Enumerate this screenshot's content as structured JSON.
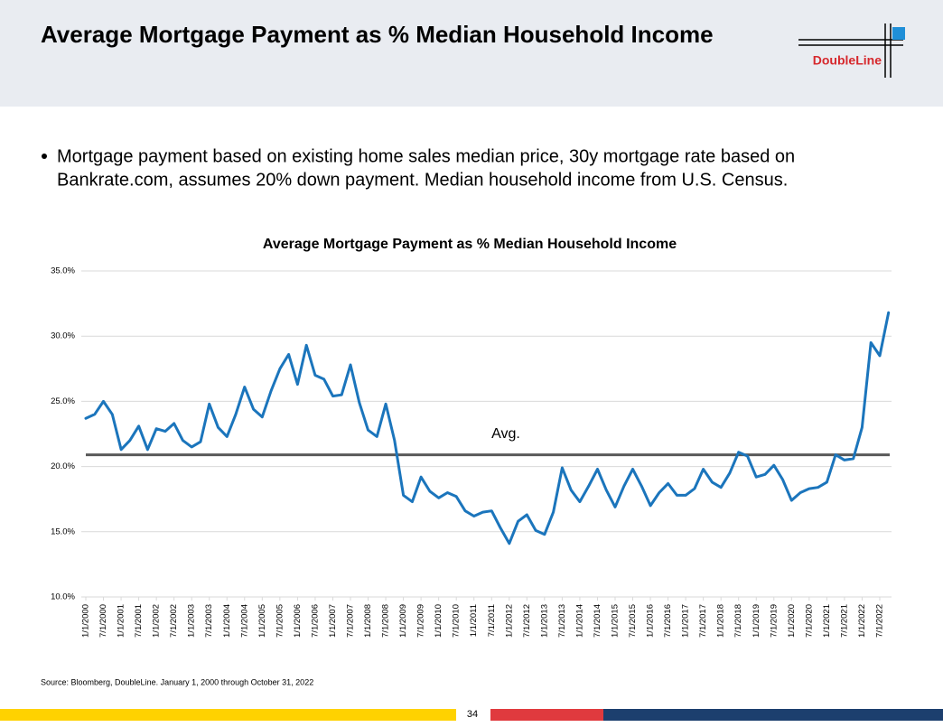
{
  "slide": {
    "title": "Average Mortgage Payment as % Median Household Income",
    "logo": "DoubleLine",
    "bullet": [
      "Mortgage payment based on existing home sales median price, 30y mortgage rate based on",
      "Bankrate.com, assumes 20% down payment. Median household income from U.S. Census."
    ],
    "source": "Source: Bloomberg, DoubleLine.  January 1, 2000 through October 31, 2022",
    "page": "34"
  },
  "chart_data": {
    "type": "line",
    "title": "Average Mortgage Payment as % Median Household Income",
    "color": "#1b75bc",
    "grid": true,
    "x": [
      "1/1/2000",
      "4/1/2000",
      "7/1/2000",
      "10/1/2000",
      "1/1/2001",
      "4/1/2001",
      "7/1/2001",
      "10/1/2001",
      "1/1/2002",
      "4/1/2002",
      "7/1/2002",
      "10/1/2002",
      "1/1/2003",
      "4/1/2003",
      "7/1/2003",
      "10/1/2003",
      "1/1/2004",
      "4/1/2004",
      "7/1/2004",
      "10/1/2004",
      "1/1/2005",
      "4/1/2005",
      "7/1/2005",
      "10/1/2005",
      "1/1/2006",
      "4/1/2006",
      "7/1/2006",
      "10/1/2006",
      "1/1/2007",
      "4/1/2007",
      "7/1/2007",
      "10/1/2007",
      "1/1/2008",
      "4/1/2008",
      "7/1/2008",
      "10/1/2008",
      "1/1/2009",
      "4/1/2009",
      "7/1/2009",
      "10/1/2009",
      "1/1/2010",
      "4/1/2010",
      "7/1/2010",
      "10/1/2010",
      "1/1/2011",
      "4/1/2011",
      "7/1/2011",
      "10/1/2011",
      "1/1/2012",
      "4/1/2012",
      "7/1/2012",
      "10/1/2012",
      "1/1/2013",
      "4/1/2013",
      "7/1/2013",
      "10/1/2013",
      "1/1/2014",
      "4/1/2014",
      "7/1/2014",
      "10/1/2014",
      "1/1/2015",
      "4/1/2015",
      "7/1/2015",
      "10/1/2015",
      "1/1/2016",
      "4/1/2016",
      "7/1/2016",
      "10/1/2016",
      "1/1/2017",
      "4/1/2017",
      "7/1/2017",
      "10/1/2017",
      "1/1/2018",
      "4/1/2018",
      "7/1/2018",
      "10/1/2018",
      "1/1/2019",
      "4/1/2019",
      "7/1/2019",
      "10/1/2019",
      "1/1/2020",
      "4/1/2020",
      "7/1/2020",
      "10/1/2020",
      "1/1/2021",
      "4/1/2021",
      "7/1/2021",
      "10/1/2021",
      "1/1/2022",
      "4/1/2022",
      "7/1/2022",
      "10/1/2022"
    ],
    "values": [
      23.7,
      24.0,
      25.0,
      24.0,
      21.3,
      22.0,
      23.1,
      21.3,
      22.9,
      22.7,
      23.3,
      22.0,
      21.5,
      21.9,
      24.8,
      23.0,
      22.3,
      24.0,
      26.1,
      24.4,
      23.8,
      25.8,
      27.5,
      28.6,
      26.3,
      29.3,
      27.0,
      26.7,
      25.4,
      25.5,
      27.8,
      24.9,
      22.8,
      22.3,
      24.8,
      22.0,
      17.8,
      17.3,
      19.2,
      18.1,
      17.6,
      18.0,
      17.7,
      16.6,
      16.2,
      16.5,
      16.6,
      15.3,
      14.1,
      15.8,
      16.3,
      15.1,
      14.8,
      16.5,
      19.9,
      18.2,
      17.3,
      18.5,
      19.8,
      18.2,
      16.9,
      18.5,
      19.8,
      18.5,
      17.0,
      18.0,
      18.7,
      17.8,
      17.8,
      18.3,
      19.8,
      18.8,
      18.4,
      19.5,
      21.1,
      20.8,
      19.2,
      19.4,
      20.1,
      19.0,
      17.4,
      18.0,
      18.3,
      18.4,
      18.8,
      20.9,
      20.5,
      20.6,
      23.0,
      29.5,
      28.5,
      31.8
    ],
    "average": {
      "label": "Avg.",
      "value": 20.9,
      "color": "#595959"
    },
    "xlim": [
      "1/1/2000",
      "11/1/2022"
    ],
    "xticks": [
      "1/1/2000",
      "7/1/2000",
      "1/1/2001",
      "7/1/2001",
      "1/1/2002",
      "7/1/2002",
      "1/1/2003",
      "7/1/2003",
      "1/1/2004",
      "7/1/2004",
      "1/1/2005",
      "7/1/2005",
      "1/1/2006",
      "7/1/2006",
      "1/1/2007",
      "7/1/2007",
      "1/1/2008",
      "7/1/2008",
      "1/1/2009",
      "7/1/2009",
      "1/1/2010",
      "7/1/2010",
      "1/1/2011",
      "7/1/2011",
      "1/1/2012",
      "7/1/2012",
      "1/1/2013",
      "7/1/2013",
      "1/1/2014",
      "7/1/2014",
      "1/1/2015",
      "7/1/2015",
      "1/1/2016",
      "7/1/2016",
      "1/1/2017",
      "7/1/2017",
      "1/1/2018",
      "7/1/2018",
      "1/1/2019",
      "7/1/2019",
      "1/1/2020",
      "7/1/2020",
      "1/1/2021",
      "7/1/2021",
      "1/1/2022",
      "7/1/2022"
    ],
    "ylim": [
      10,
      35
    ],
    "yticks": [
      {
        "value": 10,
        "label": "10.0%"
      },
      {
        "value": 15,
        "label": "15.0%"
      },
      {
        "value": 20,
        "label": "20.0%"
      },
      {
        "value": 25,
        "label": "25.0%"
      },
      {
        "value": 30,
        "label": "30.0%"
      },
      {
        "value": 35,
        "label": "35.0%"
      }
    ]
  }
}
